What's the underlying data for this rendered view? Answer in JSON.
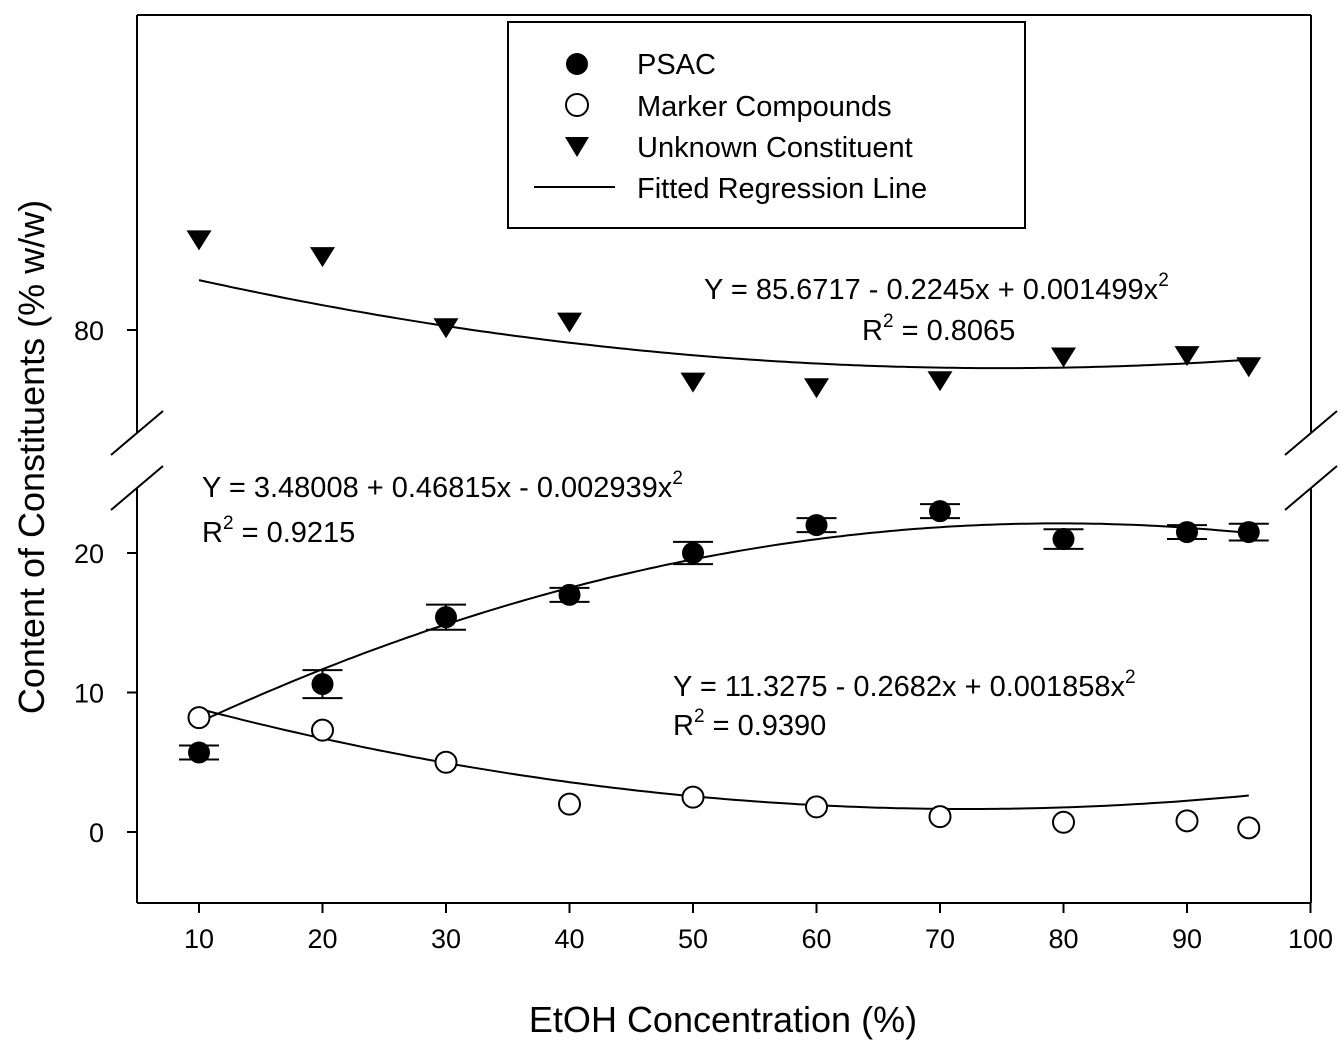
{
  "chart_data": {
    "type": "scatter",
    "xlabel": "EtOH Concentration (%)",
    "ylabel": "Content of Constituents (% w/w)",
    "xlim": [
      5,
      100
    ],
    "x_ticks": [
      "10",
      "20",
      "30",
      "40",
      "50",
      "60",
      "70",
      "80",
      "90",
      "100"
    ],
    "y_ticks_lower": [
      "0",
      "10",
      "20"
    ],
    "y_ticks_upper": [
      "80"
    ],
    "y_axis_break": true,
    "legend": {
      "position": "top-center",
      "entries": [
        {
          "label": "PSAC",
          "marker": "filled-circle"
        },
        {
          "label": "Marker Compounds",
          "marker": "open-circle"
        },
        {
          "label": "Unknown Constituent",
          "marker": "filled-triangle-down"
        },
        {
          "label": "Fitted Regression Line",
          "marker": "line"
        }
      ]
    },
    "series": [
      {
        "name": "PSAC",
        "marker": "filled-circle",
        "x": [
          10,
          20,
          30,
          40,
          50,
          60,
          70,
          80,
          90,
          95
        ],
        "y": [
          5.7,
          10.6,
          15.4,
          17.0,
          20.0,
          22.0,
          23.0,
          21.0,
          21.5,
          21.5
        ],
        "err": [
          0.5,
          1.0,
          0.9,
          0.5,
          0.8,
          0.5,
          0.5,
          0.7,
          0.5,
          0.6
        ],
        "fit": {
          "a": 3.48008,
          "b": 0.46815,
          "c": -0.002939
        },
        "equation": "Y = 3.48008 + 0.46815x - 0.002939x",
        "equation_sup": "2",
        "r2_prefix": "R",
        "r2_sup": "2",
        "r2_value": " = 0.9215"
      },
      {
        "name": "Marker Compounds",
        "marker": "open-circle",
        "x": [
          10,
          20,
          30,
          40,
          50,
          60,
          70,
          80,
          90,
          95
        ],
        "y": [
          8.2,
          7.3,
          5.0,
          2.0,
          2.5,
          1.8,
          1.1,
          0.7,
          0.8,
          0.3
        ],
        "fit": {
          "a": 11.3275,
          "b": -0.2682,
          "c": 0.001858
        },
        "equation": "Y = 11.3275 - 0.2682x + 0.001858x",
        "equation_sup": "2",
        "r2_prefix": "R",
        "r2_sup": "2",
        "r2_value": " = 0.9390"
      },
      {
        "name": "Unknown Constituent",
        "marker": "filled-triangle-down",
        "x": [
          10,
          20,
          30,
          40,
          50,
          60,
          70,
          80,
          90,
          95
        ],
        "y": [
          86.5,
          85.3,
          80.2,
          80.6,
          76.3,
          75.9,
          76.4,
          78.1,
          78.2,
          77.4
        ],
        "fit": {
          "a": 85.6717,
          "b": -0.2245,
          "c": 0.001499
        },
        "equation": "Y = 85.6717 - 0.2245x + 0.001499x",
        "equation_sup": "2",
        "r2_prefix": "R",
        "r2_sup": "2",
        "r2_value": " = 0.8065"
      }
    ]
  }
}
